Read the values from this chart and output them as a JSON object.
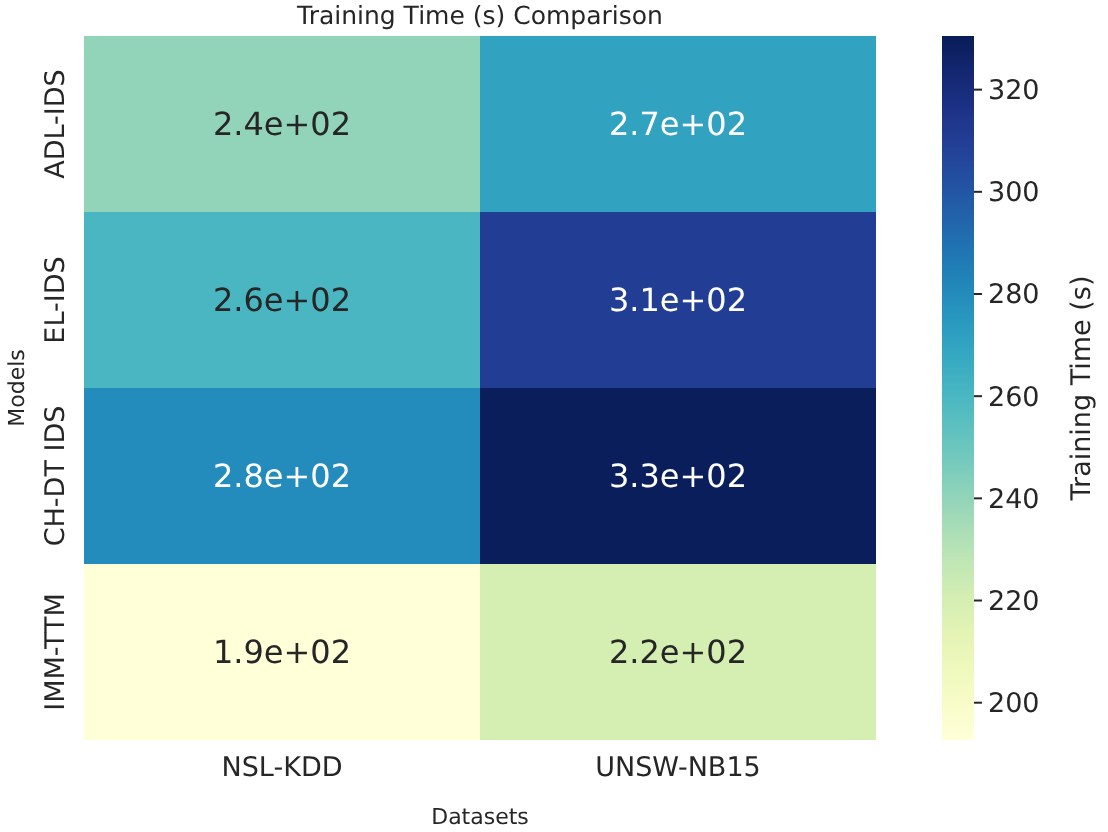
{
  "chart_data": {
    "type": "heatmap",
    "title": "Training Time (s) Comparison",
    "xlabel": "Datasets",
    "ylabel": "Models",
    "clabel": "Training Time (s)",
    "categories": [
      "NSL-KDD",
      "UNSW-NB15"
    ],
    "y_categories": [
      "ADL-IDS",
      "EL-IDS",
      "CH-DT IDS",
      "IMM-TTM"
    ],
    "cells": [
      [
        240,
        270
      ],
      [
        260,
        310
      ],
      [
        280,
        330
      ],
      [
        193,
        220
      ]
    ],
    "cell_labels": [
      [
        "2.4e+02",
        "2.7e+02"
      ],
      [
        "2.6e+02",
        "3.1e+02"
      ],
      [
        "2.8e+02",
        "3.3e+02"
      ],
      [
        "1.9e+02",
        "2.2e+02"
      ]
    ],
    "clim": [
      192.7,
      330.5
    ],
    "cticks": [
      200,
      220,
      240,
      260,
      280,
      300,
      320
    ]
  }
}
